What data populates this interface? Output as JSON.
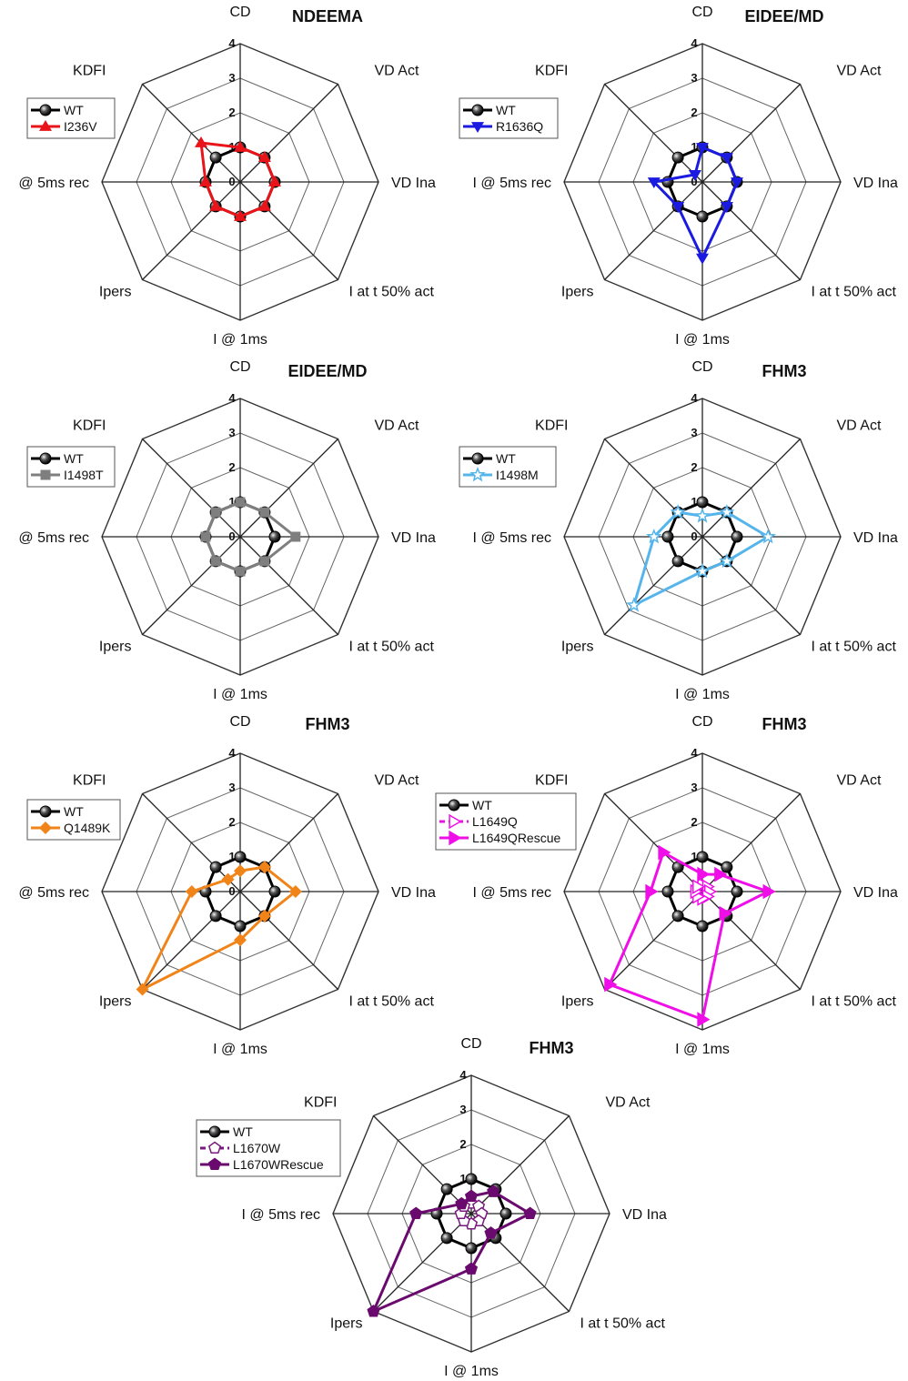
{
  "chart_data": [
    {
      "type": "radar",
      "title": "NDEEMA",
      "axes": [
        "CD",
        "VD Act",
        "VD Ina",
        "I at t 50% act",
        "I @ 1ms",
        "Ipers",
        "@ 5ms rec",
        "KDFI"
      ],
      "rlim": [
        0,
        4
      ],
      "ticks": [
        "0",
        "1",
        "2",
        "3",
        "4"
      ],
      "legend_position": "top-left",
      "series": [
        {
          "name": "WT",
          "color": "#000000",
          "marker": "sphere",
          "dashed": false,
          "values": [
            1,
            1,
            1,
            1,
            1,
            1,
            1,
            1
          ]
        },
        {
          "name": "I236V",
          "color": "#e8141a",
          "marker": "triangle-up",
          "dashed": false,
          "values": [
            1.0,
            1.0,
            1.0,
            1.0,
            1.0,
            1.0,
            1.0,
            1.6
          ]
        }
      ]
    },
    {
      "type": "radar",
      "title": "EIDEE/MD",
      "axes": [
        "CD",
        "VD Act",
        "VD Ina",
        "I at t 50% act",
        "I @ 1ms",
        "Ipers",
        "I @ 5ms rec",
        "KDFI"
      ],
      "rlim": [
        0,
        4
      ],
      "ticks": [
        "0",
        "1",
        "2",
        "3",
        "4"
      ],
      "legend_position": "top-left",
      "series": [
        {
          "name": "WT",
          "color": "#000000",
          "marker": "sphere",
          "dashed": false,
          "values": [
            1,
            1,
            1,
            1,
            1,
            1,
            1,
            1
          ]
        },
        {
          "name": "R1636Q",
          "color": "#1a1ae0",
          "marker": "triangle-down",
          "dashed": false,
          "values": [
            1.0,
            1.0,
            1.0,
            1.0,
            2.2,
            1.0,
            1.4,
            0.3
          ]
        }
      ]
    },
    {
      "type": "radar",
      "title": "EIDEE/MD",
      "axes": [
        "CD",
        "VD Act",
        "VD Ina",
        "I at t 50% act",
        "I @ 1ms",
        "Ipers",
        "@ 5ms rec",
        "KDFI"
      ],
      "rlim": [
        0,
        4
      ],
      "ticks": [
        "0",
        "1",
        "2",
        "3",
        "4"
      ],
      "legend_position": "top-left",
      "series": [
        {
          "name": "WT",
          "color": "#000000",
          "marker": "sphere",
          "dashed": false,
          "values": [
            1,
            1,
            1,
            1,
            1,
            1,
            1,
            1
          ]
        },
        {
          "name": "I1498T",
          "color": "#7f7f7f",
          "marker": "square",
          "dashed": false,
          "values": [
            1.0,
            1.0,
            1.6,
            1.0,
            1.0,
            1.0,
            1.0,
            1.0
          ]
        }
      ]
    },
    {
      "type": "radar",
      "title": "FHM3",
      "axes": [
        "CD",
        "VD Act",
        "VD Ina",
        "I at t 50% act",
        "I @ 1ms",
        "Ipers",
        "I @ 5ms rec",
        "KDFI"
      ],
      "rlim": [
        0,
        4
      ],
      "ticks": [
        "0",
        "1",
        "2",
        "3",
        "4"
      ],
      "legend_position": "top-left",
      "series": [
        {
          "name": "WT",
          "color": "#000000",
          "marker": "sphere",
          "dashed": false,
          "values": [
            1,
            1,
            1,
            1,
            1,
            1,
            1,
            1
          ]
        },
        {
          "name": "I1498M",
          "color": "#55b5ea",
          "marker": "star",
          "dashed": false,
          "values": [
            0.6,
            1.0,
            1.9,
            1.0,
            1.0,
            2.8,
            1.4,
            1.0
          ]
        }
      ]
    },
    {
      "type": "radar",
      "title": "FHM3",
      "axes": [
        "CD",
        "VD Act",
        "VD Ina",
        "I at t 50% act",
        "I @ 1ms",
        "Ipers",
        "@ 5ms rec",
        "KDFI"
      ],
      "rlim": [
        0,
        4
      ],
      "ticks": [
        "0",
        "1",
        "2",
        "3",
        "4"
      ],
      "legend_position": "top-left",
      "series": [
        {
          "name": "WT",
          "color": "#000000",
          "marker": "sphere",
          "dashed": false,
          "values": [
            1,
            1,
            1,
            1,
            1,
            1,
            1,
            1
          ]
        },
        {
          "name": "Q1489K",
          "color": "#f08418",
          "marker": "diamond",
          "dashed": false,
          "values": [
            0.6,
            1.0,
            1.6,
            1.0,
            1.4,
            4.0,
            1.4,
            0.5
          ]
        }
      ]
    },
    {
      "type": "radar",
      "title": "FHM3",
      "axes": [
        "CD",
        "VD Act",
        "VD Ina",
        "I at t 50% act",
        "I @ 1ms",
        "Ipers",
        "I @ 5ms rec",
        "KDFI"
      ],
      "rlim": [
        0,
        4
      ],
      "ticks": [
        "0",
        "1",
        "2",
        "3",
        "4"
      ],
      "legend_position": "top-left",
      "series": [
        {
          "name": "WT",
          "color": "#000000",
          "marker": "sphere",
          "dashed": false,
          "values": [
            1,
            1,
            1,
            1,
            1,
            1,
            1,
            1
          ]
        },
        {
          "name": "L1649Q",
          "color": "#f00ee8",
          "marker": "triangle-right-open",
          "dashed": true,
          "values": [
            0.2,
            0.2,
            0.2,
            0.2,
            0.2,
            0.2,
            0.2,
            0.2
          ]
        },
        {
          "name": "L1649QRescue",
          "color": "#f00ee8",
          "marker": "triangle-right",
          "dashed": false,
          "values": [
            0.5,
            0.7,
            1.9,
            0.9,
            3.7,
            3.8,
            1.5,
            1.6
          ]
        }
      ]
    },
    {
      "type": "radar",
      "title": "FHM3",
      "axes": [
        "CD",
        "VD Act",
        "VD Ina",
        "I at t 50% act",
        "I @ 1ms",
        "Ipers",
        "I @ 5ms rec",
        "KDFI"
      ],
      "rlim": [
        0,
        4
      ],
      "ticks": [
        "0",
        "1",
        "2",
        "3",
        "4"
      ],
      "legend_position": "top-left",
      "series": [
        {
          "name": "WT",
          "color": "#000000",
          "marker": "sphere",
          "dashed": false,
          "values": [
            1,
            1,
            1,
            1,
            1,
            1,
            1,
            1
          ]
        },
        {
          "name": "L1670W",
          "color": "#7b1a7e",
          "marker": "pentagon-open",
          "dashed": true,
          "values": [
            0.3,
            0.3,
            0.3,
            0.3,
            0.3,
            0.3,
            0.3,
            0.3
          ]
        },
        {
          "name": "L1670WRescue",
          "color": "#6a0a6e",
          "marker": "pentagon",
          "dashed": false,
          "values": [
            0.5,
            0.9,
            1.7,
            0.8,
            1.6,
            4.0,
            1.6,
            0.4
          ]
        }
      ]
    }
  ]
}
